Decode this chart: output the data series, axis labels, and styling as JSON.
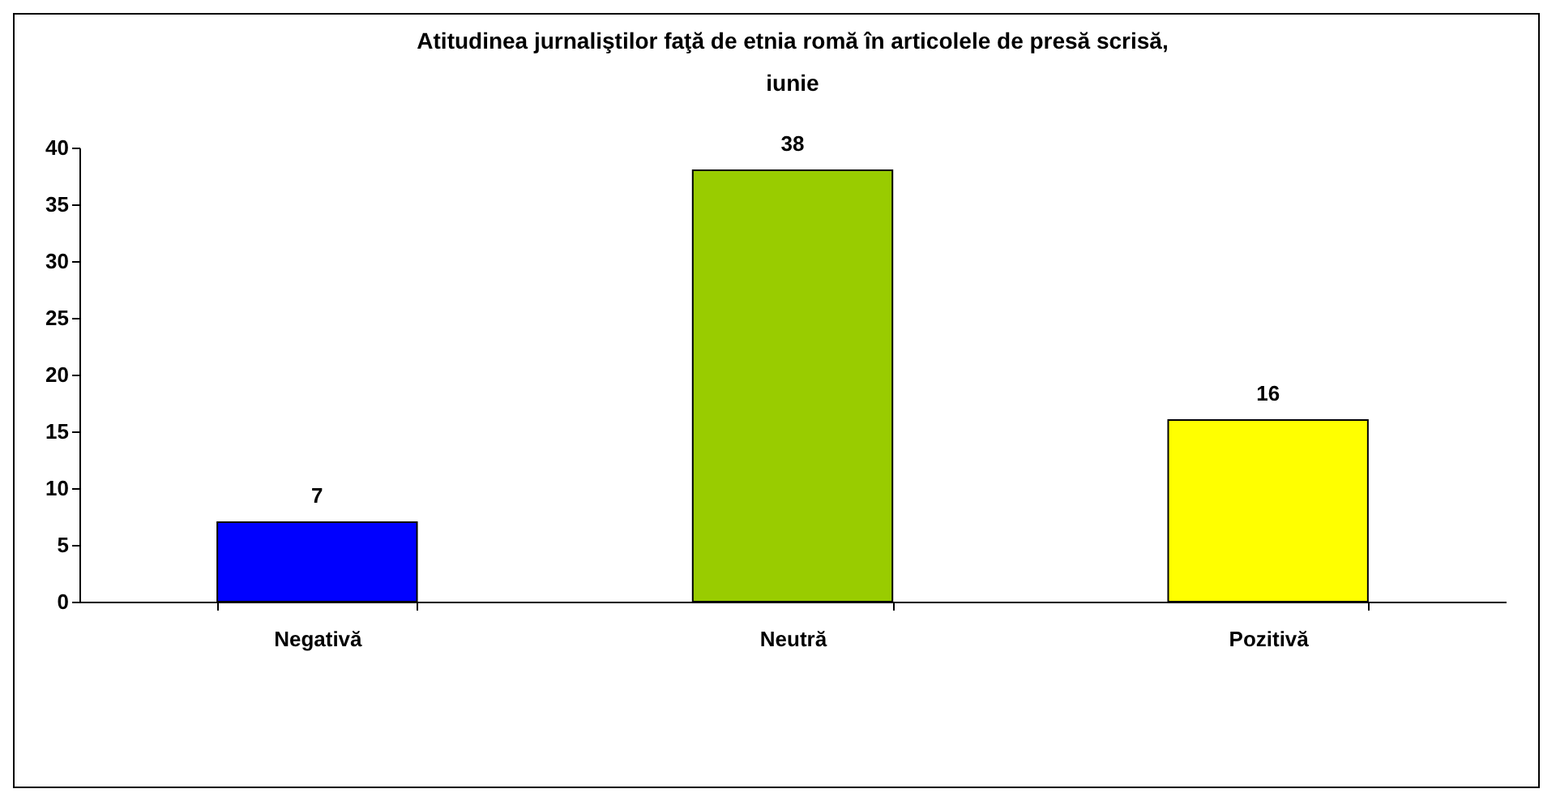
{
  "chart_data": {
    "type": "bar",
    "title": "Atitudinea jurnaliştilor faţă de etnia romă în articolele de presă scrisă,\niunie",
    "categories": [
      "Negativă",
      "Neutră",
      "Pozitivă"
    ],
    "values": [
      7,
      38,
      16
    ],
    "colors": [
      "#0000ff",
      "#99cc00",
      "#ffff00"
    ],
    "ylim": [
      0,
      40
    ],
    "yticks": [
      0,
      5,
      10,
      15,
      20,
      25,
      30,
      35,
      40
    ],
    "grid": false,
    "legend": false,
    "data_labels": true
  }
}
